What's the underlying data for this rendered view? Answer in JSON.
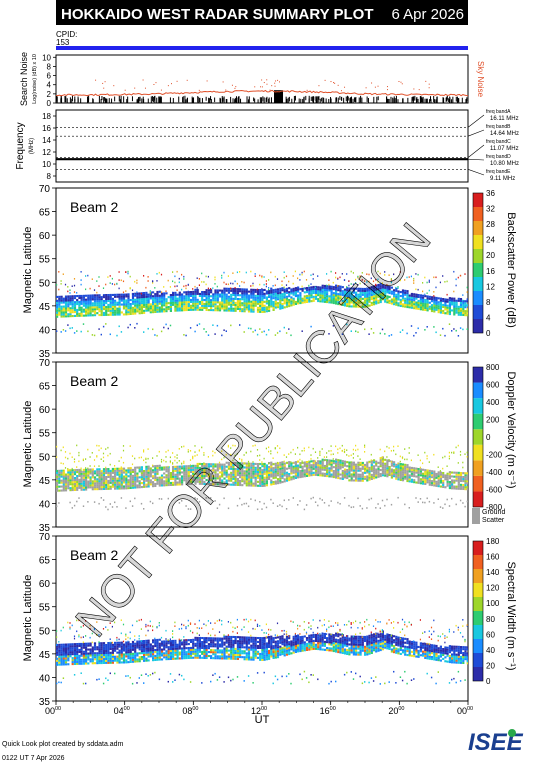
{
  "header": {
    "title": "HOKKAIDO WEST RADAR SUMMARY PLOT",
    "date": "6 Apr 2026"
  },
  "cpid": {
    "label": "CPID:",
    "value": "153"
  },
  "noise_panel": {
    "ylabel_main": "Search Noise",
    "ylabel_sub": "Log(noise) (dB) x 10",
    "legend_label": "Sky Noise",
    "yticks": [
      "0",
      "2",
      "4",
      "6",
      "8",
      "10"
    ],
    "colors": {
      "line": "#e0502a",
      "bars": "#000000"
    }
  },
  "freq_panel": {
    "ylabel_main": "Frequency",
    "ylabel_sub": "(MHz)",
    "yticks": [
      "8",
      "10",
      "12",
      "14",
      "16",
      "18"
    ],
    "bands": [
      {
        "label": "freq bandA",
        "value": "16.11 MHz"
      },
      {
        "label": "freq bandB",
        "value": "14.64 MHz"
      },
      {
        "label": "freq bandC",
        "value": "11.07 MHz"
      },
      {
        "label": "freq bandD",
        "value": "10.80 MHz"
      },
      {
        "label": "freq bandE",
        "value": "9.11 MHz"
      }
    ]
  },
  "panels": [
    {
      "beam": "Beam 2",
      "ylabel": "Magnetic Latitude",
      "yticks": [
        "35",
        "40",
        "45",
        "50",
        "55",
        "60",
        "65",
        "70"
      ],
      "colorbar_title": "Backscatter Power (dB)",
      "colorbar_ticks": [
        "0",
        "4",
        "8",
        "12",
        "16",
        "20",
        "24",
        "28",
        "32",
        "36"
      ],
      "colorbar_colors": [
        "#2c2ca8",
        "#1f4bd6",
        "#1a8cff",
        "#18c8e0",
        "#2ecc71",
        "#9ed62a",
        "#f0e020",
        "#f0a020",
        "#f06020",
        "#d81e1e"
      ]
    },
    {
      "beam": "Beam 2",
      "ylabel": "Magnetic Latitude",
      "yticks": [
        "35",
        "40",
        "45",
        "50",
        "55",
        "60",
        "65",
        "70"
      ],
      "colorbar_title": "Doppler Velocity (m s⁻¹)",
      "colorbar_ticks": [
        "-800",
        "-600",
        "-400",
        "-200",
        "0",
        "200",
        "400",
        "600",
        "800"
      ],
      "colorbar_colors": [
        "#d81e1e",
        "#f06020",
        "#f0a020",
        "#f0e020",
        "#9ed62a",
        "#2ecc71",
        "#18c8e0",
        "#1a8cff",
        "#2c2ca8"
      ],
      "ground_scatter_label_1": "Ground",
      "ground_scatter_label_2": "Scatter",
      "ground_scatter_color": "#a0a0a0"
    },
    {
      "beam": "Beam 2",
      "ylabel": "Magnetic Latitude",
      "yticks": [
        "35",
        "40",
        "45",
        "50",
        "55",
        "60",
        "65",
        "70"
      ],
      "colorbar_title": "Spectral Width (m s⁻¹)",
      "colorbar_ticks": [
        "0",
        "20",
        "40",
        "60",
        "80",
        "100",
        "120",
        "140",
        "160",
        "180"
      ],
      "colorbar_colors": [
        "#2c2ca8",
        "#1f4bd6",
        "#1a8cff",
        "#18c8e0",
        "#2ecc71",
        "#9ed62a",
        "#f0e020",
        "#f0a020",
        "#f06020",
        "#d81e1e"
      ]
    }
  ],
  "xaxis": {
    "label": "UT",
    "ticks": [
      {
        "h": "00",
        "m": "00"
      },
      {
        "h": "04",
        "m": "00"
      },
      {
        "h": "08",
        "m": "00"
      },
      {
        "h": "12",
        "m": "00"
      },
      {
        "h": "16",
        "m": "00"
      },
      {
        "h": "20",
        "m": "00"
      },
      {
        "h": "00",
        "m": "00"
      }
    ]
  },
  "footer": {
    "line1": "Quick Look plot created by sddata.adm",
    "line2": "0122 UT  7 Apr 2026",
    "logo": "ISEE"
  },
  "watermark": "NOT FOR PUBLICATION",
  "chart_data": {
    "type": "heatmap",
    "title": "HOKKAIDO WEST RADAR SUMMARY PLOT",
    "x_unit": "UT hours",
    "xlim": [
      0,
      24
    ],
    "ylim": [
      35,
      70
    ],
    "echo_region_lower_latitude": [
      [
        0,
        42.5
      ],
      [
        2,
        42.8
      ],
      [
        4,
        43.0
      ],
      [
        6,
        43.6
      ],
      [
        8,
        44.0
      ],
      [
        10,
        43.8
      ],
      [
        12,
        43.5
      ],
      [
        13,
        44.2
      ],
      [
        14,
        45.3
      ],
      [
        15,
        45.9
      ],
      [
        16,
        45.5
      ],
      [
        17,
        44.7
      ],
      [
        18,
        44.6
      ],
      [
        19,
        45.8
      ],
      [
        20,
        44.8
      ],
      [
        21,
        44.2
      ],
      [
        22,
        43.6
      ],
      [
        23,
        43.0
      ],
      [
        24,
        42.8
      ]
    ],
    "echo_region_upper_latitude": [
      [
        0,
        46.8
      ],
      [
        2,
        47.2
      ],
      [
        4,
        47.4
      ],
      [
        6,
        47.8
      ],
      [
        8,
        48.2
      ],
      [
        10,
        48.5
      ],
      [
        12,
        48.4
      ],
      [
        14,
        48.7
      ],
      [
        15,
        49.0
      ],
      [
        16,
        49.2
      ],
      [
        17,
        48.8
      ],
      [
        18,
        48.6
      ],
      [
        19,
        49.6
      ],
      [
        20,
        48.3
      ],
      [
        21,
        47.4
      ],
      [
        22,
        46.8
      ],
      [
        23,
        46.4
      ],
      [
        24,
        46.2
      ]
    ],
    "sparse_scatter_upper_latitude": 52.5,
    "frequency_bands_mhz": [
      16.11,
      14.64,
      11.07,
      10.8,
      9.11
    ]
  }
}
